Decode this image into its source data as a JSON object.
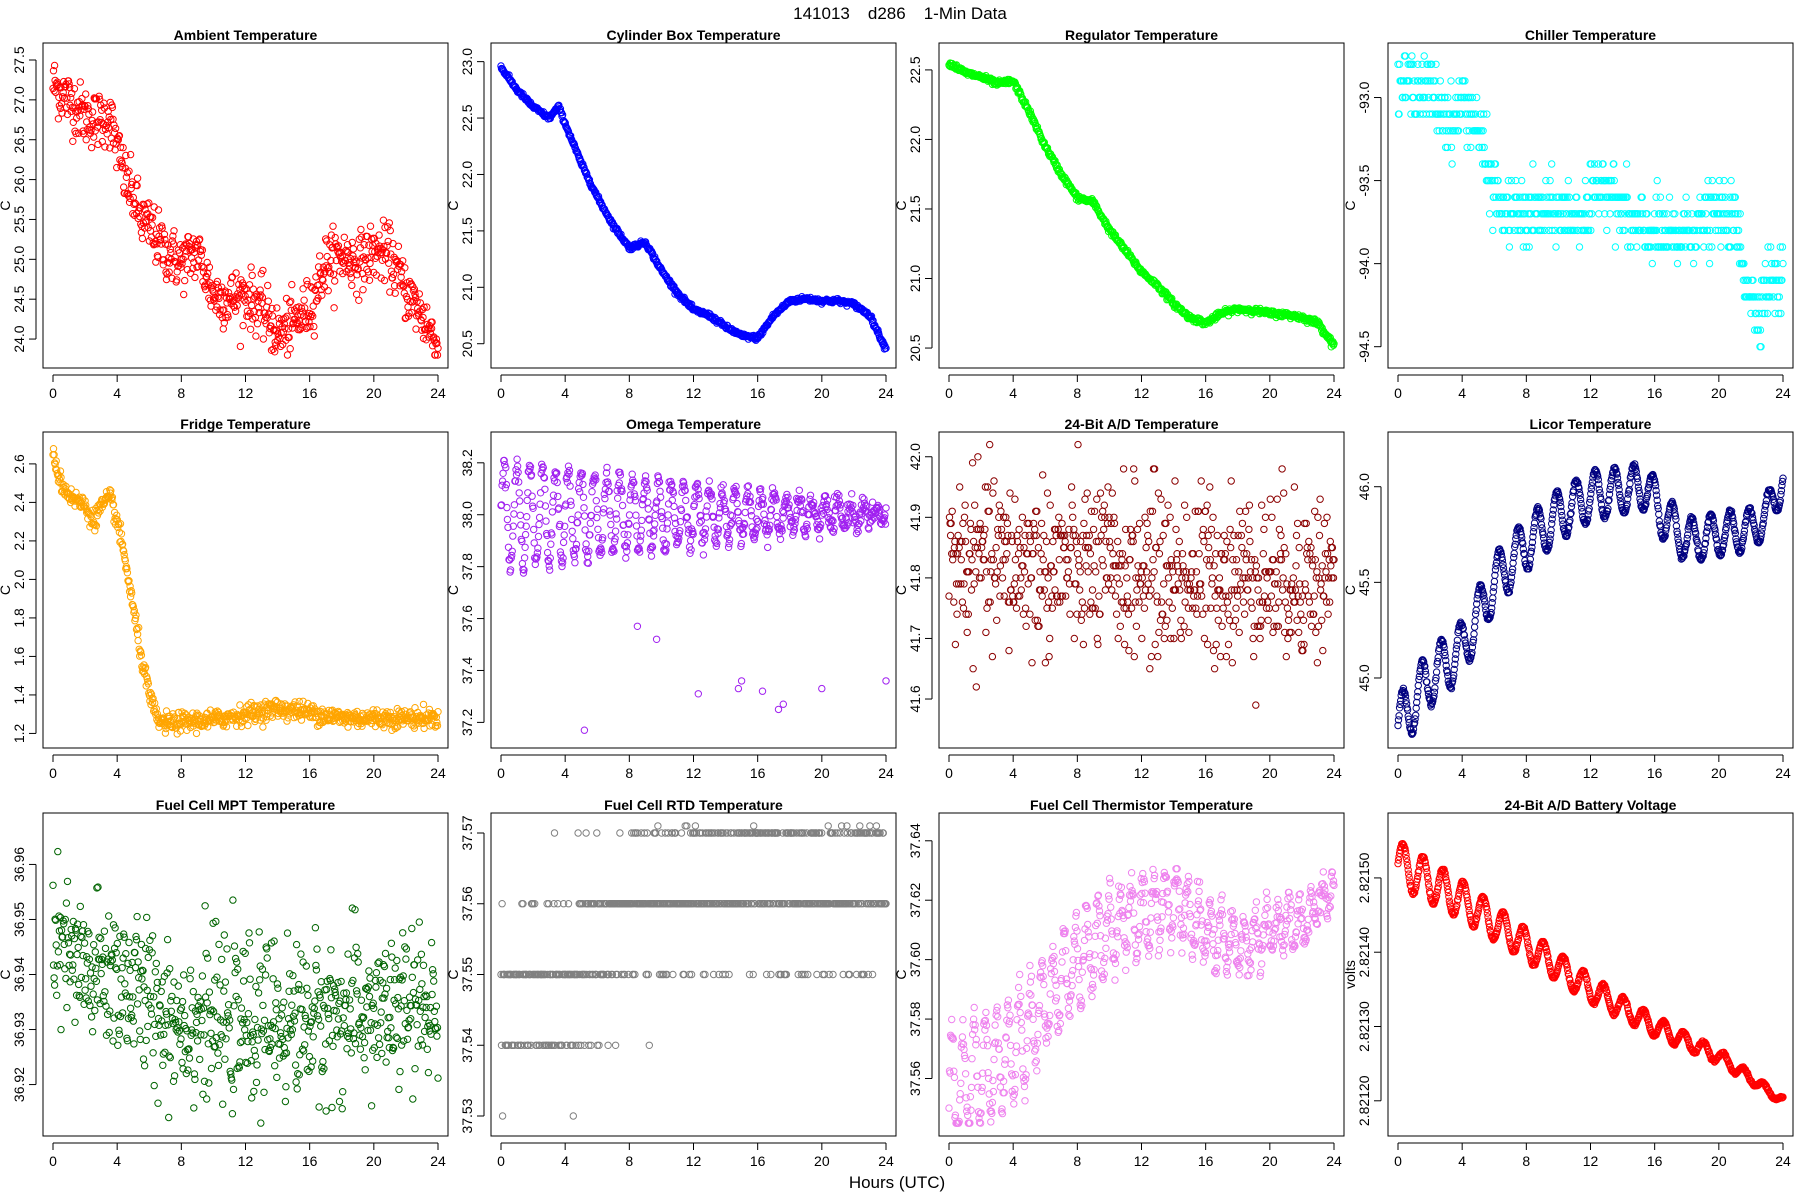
{
  "header": {
    "station": "141013",
    "site": "d286",
    "resolution": "1-Min Data"
  },
  "xlabel": "Hours (UTC)",
  "chart_data": [
    {
      "type": "scatter",
      "title": "Ambient Temperature",
      "ylabel": "C",
      "color": "#ff0000",
      "ylim": [
        23.8,
        27.55
      ],
      "yticks": [
        "24.0",
        "24.5",
        "25.0",
        "25.5",
        "26.0",
        "26.5",
        "27.0",
        "27.5"
      ],
      "xticks": [
        "0",
        "4",
        "8",
        "12",
        "16",
        "20",
        "24"
      ],
      "xlim": [
        0,
        24
      ],
      "anchors": [
        [
          0,
          27.2
        ],
        [
          0.5,
          27.1
        ],
        [
          1,
          27.0
        ],
        [
          1.5,
          26.9
        ],
        [
          2,
          26.8
        ],
        [
          2.5,
          26.75
        ],
        [
          3,
          26.75
        ],
        [
          3.5,
          26.8
        ],
        [
          4,
          26.4
        ],
        [
          4.5,
          26.0
        ],
        [
          5,
          25.8
        ],
        [
          5.5,
          25.5
        ],
        [
          6,
          25.4
        ],
        [
          7,
          25.1
        ],
        [
          8,
          24.95
        ],
        [
          9,
          25.1
        ],
        [
          10,
          24.55
        ],
        [
          11,
          24.5
        ],
        [
          12,
          24.55
        ],
        [
          13,
          24.4
        ],
        [
          14,
          24.05
        ],
        [
          15,
          24.2
        ],
        [
          16,
          24.4
        ],
        [
          17,
          24.95
        ],
        [
          18,
          25.05
        ],
        [
          19,
          24.95
        ],
        [
          20,
          25.1
        ],
        [
          21,
          25.05
        ],
        [
          22,
          24.6
        ],
        [
          23,
          24.3
        ],
        [
          24,
          23.9
        ]
      ],
      "noise": 0.18,
      "osc": 0,
      "period": 1.5
    },
    {
      "type": "scatter",
      "title": "Cylinder Box Temperature",
      "ylabel": "C",
      "color": "#0000ff",
      "ylim": [
        20.4,
        23.05
      ],
      "yticks": [
        "20.5",
        "21.0",
        "21.5",
        "22.0",
        "22.5",
        "23.0"
      ],
      "xticks": [
        "0",
        "4",
        "8",
        "12",
        "16",
        "20",
        "24"
      ],
      "xlim": [
        0,
        24
      ],
      "anchors": [
        [
          0,
          22.95
        ],
        [
          1,
          22.75
        ],
        [
          2,
          22.6
        ],
        [
          3,
          22.5
        ],
        [
          3.6,
          22.6
        ],
        [
          4,
          22.45
        ],
        [
          5,
          22.1
        ],
        [
          6,
          21.8
        ],
        [
          7,
          21.55
        ],
        [
          8,
          21.35
        ],
        [
          9,
          21.4
        ],
        [
          10,
          21.15
        ],
        [
          11,
          20.95
        ],
        [
          12,
          20.8
        ],
        [
          13,
          20.75
        ],
        [
          14,
          20.65
        ],
        [
          15,
          20.57
        ],
        [
          16,
          20.55
        ],
        [
          17,
          20.75
        ],
        [
          18,
          20.88
        ],
        [
          19,
          20.9
        ],
        [
          20,
          20.88
        ],
        [
          21,
          20.88
        ],
        [
          22,
          20.85
        ],
        [
          23,
          20.75
        ],
        [
          24,
          20.45
        ]
      ],
      "noise": 0.01,
      "osc": 0,
      "period": 1.5
    },
    {
      "type": "scatter",
      "title": "Regulator Temperature",
      "ylabel": "C",
      "color": "#00ff00",
      "ylim": [
        20.45,
        22.6
      ],
      "yticks": [
        "20.5",
        "21.0",
        "21.5",
        "22.0",
        "22.5"
      ],
      "xticks": [
        "0",
        "4",
        "8",
        "12",
        "16",
        "20",
        "24"
      ],
      "xlim": [
        0,
        24
      ],
      "anchors": [
        [
          0,
          22.55
        ],
        [
          1,
          22.48
        ],
        [
          2,
          22.45
        ],
        [
          3,
          22.4
        ],
        [
          4,
          22.42
        ],
        [
          5,
          22.2
        ],
        [
          6,
          21.95
        ],
        [
          7,
          21.75
        ],
        [
          8,
          21.58
        ],
        [
          9,
          21.55
        ],
        [
          10,
          21.35
        ],
        [
          11,
          21.2
        ],
        [
          12,
          21.05
        ],
        [
          13,
          20.95
        ],
        [
          14,
          20.82
        ],
        [
          15,
          20.72
        ],
        [
          16,
          20.68
        ],
        [
          17,
          20.75
        ],
        [
          18,
          20.78
        ],
        [
          19,
          20.77
        ],
        [
          20,
          20.75
        ],
        [
          21,
          20.74
        ],
        [
          22,
          20.72
        ],
        [
          23,
          20.68
        ],
        [
          24,
          20.52
        ]
      ],
      "noise": 0.01,
      "osc": 0,
      "period": 1.5
    },
    {
      "type": "scatter",
      "title": "Chiller Temperature",
      "ylabel": "C",
      "color": "#00ffff",
      "ylim": [
        -94.55,
        -92.75
      ],
      "yticks": [
        "-94.5",
        "-94.0",
        "-93.5",
        "-93.0"
      ],
      "xticks": [
        "0",
        "4",
        "8",
        "12",
        "16",
        "20",
        "24"
      ],
      "xlim": [
        0,
        24
      ],
      "anchors": [
        [
          0,
          -92.9
        ],
        [
          2,
          -92.95
        ],
        [
          2.5,
          -93.05
        ],
        [
          3.5,
          -93.15
        ],
        [
          4,
          -93.0
        ],
        [
          4.5,
          -93.1
        ],
        [
          5,
          -93.2
        ],
        [
          5.5,
          -93.4
        ],
        [
          6,
          -93.55
        ],
        [
          6.5,
          -93.7
        ],
        [
          12,
          -93.7
        ],
        [
          12.5,
          -93.5
        ],
        [
          13,
          -93.5
        ],
        [
          14,
          -93.7
        ],
        [
          15,
          -93.8
        ],
        [
          16,
          -93.8
        ],
        [
          17,
          -93.85
        ],
        [
          18,
          -93.8
        ],
        [
          20,
          -93.7
        ],
        [
          21,
          -93.75
        ],
        [
          21.5,
          -94.0
        ],
        [
          22,
          -94.2
        ],
        [
          22.5,
          -94.3
        ],
        [
          23,
          -94.1
        ],
        [
          24,
          -94.1
        ]
      ],
      "noise": 0.1,
      "osc": 0,
      "period": 1.5,
      "step": 0.1
    },
    {
      "type": "scatter",
      "title": "Fridge Temperature",
      "ylabel": "C",
      "color": "#ffa500",
      "ylim": [
        1.19,
        2.7
      ],
      "yticks": [
        "1.2",
        "1.4",
        "1.6",
        "1.8",
        "2.0",
        "2.2",
        "2.4",
        "2.6"
      ],
      "xticks": [
        "0",
        "4",
        "8",
        "12",
        "16",
        "20",
        "24"
      ],
      "xlim": [
        0,
        24
      ],
      "anchors": [
        [
          0,
          2.65
        ],
        [
          0.5,
          2.5
        ],
        [
          1,
          2.44
        ],
        [
          2,
          2.38
        ],
        [
          2.5,
          2.3
        ],
        [
          3,
          2.38
        ],
        [
          3.6,
          2.42
        ],
        [
          4,
          2.3
        ],
        [
          4.5,
          2.1
        ],
        [
          5,
          1.85
        ],
        [
          5.5,
          1.6
        ],
        [
          6,
          1.4
        ],
        [
          6.5,
          1.27
        ],
        [
          7,
          1.25
        ],
        [
          8,
          1.26
        ],
        [
          10,
          1.27
        ],
        [
          12,
          1.3
        ],
        [
          14,
          1.33
        ],
        [
          16,
          1.31
        ],
        [
          18,
          1.28
        ],
        [
          20,
          1.28
        ],
        [
          22,
          1.28
        ],
        [
          24,
          1.28
        ]
      ],
      "noise": 0.025,
      "osc": 0,
      "period": 1.5
    },
    {
      "type": "scatter",
      "title": "Omega Temperature",
      "ylabel": "C",
      "color": "#a020f0",
      "ylim": [
        37.15,
        38.27
      ],
      "yticks": [
        "37.2",
        "37.4",
        "37.6",
        "37.8",
        "38.0",
        "38.2"
      ],
      "xticks": [
        "0",
        "4",
        "8",
        "12",
        "16",
        "20",
        "24"
      ],
      "xlim": [
        0,
        24
      ],
      "anchors": [
        [
          0,
          38.0
        ],
        [
          12,
          38.0
        ],
        [
          18,
          38.0
        ],
        [
          24,
          38.0
        ]
      ],
      "noise": 0.02,
      "osc": 0.2,
      "period": 0.8,
      "osc_decay": 0.12,
      "outliers": [
        [
          5.2,
          37.17
        ],
        [
          8.5,
          37.57
        ],
        [
          9.7,
          37.52
        ],
        [
          12.3,
          37.31
        ],
        [
          14.8,
          37.33
        ],
        [
          15,
          37.36
        ],
        [
          16.3,
          37.32
        ],
        [
          17.3,
          37.25
        ],
        [
          17.6,
          37.27
        ],
        [
          20,
          37.33
        ],
        [
          24,
          37.36
        ]
      ]
    },
    {
      "type": "scatter",
      "title": "24-Bit A/D Temperature",
      "ylabel": "C",
      "color": "#8b0000",
      "ylim": [
        41.54,
        42.02
      ],
      "yticks": [
        "41.6",
        "41.7",
        "41.8",
        "41.9",
        "42.0"
      ],
      "xticks": [
        "0",
        "4",
        "8",
        "12",
        "16",
        "20",
        "24"
      ],
      "xlim": [
        0,
        24
      ],
      "anchors": [
        [
          0,
          41.83
        ],
        [
          12,
          41.81
        ],
        [
          24,
          41.8
        ]
      ],
      "noise": 0.07,
      "osc": 0,
      "period": 1.5,
      "step": 0.01
    },
    {
      "type": "scatter",
      "title": "Licor Temperature",
      "ylabel": "C",
      "color": "#000080",
      "ylim": [
        44.7,
        46.22
      ],
      "yticks": [
        "45.0",
        "45.5",
        "46.0"
      ],
      "xticks": [
        "0",
        "4",
        "8",
        "12",
        "16",
        "20",
        "24"
      ],
      "xlim": [
        0,
        24
      ],
      "anchors": [
        [
          0,
          44.75
        ],
        [
          2,
          45.0
        ],
        [
          4,
          45.15
        ],
        [
          6,
          45.5
        ],
        [
          8,
          45.7
        ],
        [
          10,
          45.85
        ],
        [
          12,
          45.95
        ],
        [
          14,
          45.98
        ],
        [
          15.5,
          46.0
        ],
        [
          16.5,
          45.85
        ],
        [
          18,
          45.72
        ],
        [
          20,
          45.75
        ],
        [
          22,
          45.78
        ],
        [
          23,
          45.85
        ],
        [
          24,
          46.05
        ]
      ],
      "noise": 0.005,
      "osc": 0.15,
      "period": 1.2,
      "osc_decay": 0.7
    },
    {
      "type": "scatter",
      "title": "Fuel Cell MPT Temperature",
      "ylabel": "C",
      "color": "#006400",
      "ylim": [
        36.913,
        36.967
      ],
      "yticks": [
        "36.92",
        "36.93",
        "36.94",
        "36.95",
        "36.96"
      ],
      "xticks": [
        "0",
        "4",
        "8",
        "12",
        "16",
        "20",
        "24"
      ],
      "xlim": [
        0,
        24
      ],
      "anchors": [
        [
          0,
          36.945
        ],
        [
          2,
          36.94
        ],
        [
          4,
          36.94
        ],
        [
          6,
          36.935
        ],
        [
          8,
          36.932
        ],
        [
          12,
          36.931
        ],
        [
          16,
          36.932
        ],
        [
          20,
          36.933
        ],
        [
          24,
          36.934
        ]
      ],
      "noise": 0.007,
      "osc": 0,
      "period": 1.5
    },
    {
      "type": "scatter",
      "title": "Fuel Cell RTD Temperature",
      "ylabel": "C",
      "color": "#808080",
      "ylim": [
        37.529,
        37.571
      ],
      "yticks": [
        "37.53",
        "37.54",
        "37.55",
        "37.56",
        "37.57"
      ],
      "xticks": [
        "0",
        "4",
        "8",
        "12",
        "16",
        "20",
        "24"
      ],
      "xlim": [
        0,
        24
      ],
      "anchors": [
        [
          0,
          37.545
        ],
        [
          3,
          37.548
        ],
        [
          5,
          37.552
        ],
        [
          7,
          37.558
        ],
        [
          12,
          37.562
        ],
        [
          18,
          37.563
        ],
        [
          24,
          37.562
        ]
      ],
      "noise": 0.006,
      "osc": 0,
      "period": 1.5,
      "step": 0.01
    },
    {
      "type": "scatter",
      "title": "Fuel Cell Thermistor Temperature",
      "ylabel": "C",
      "color": "#ee82ee",
      "ylim": [
        37.545,
        37.645
      ],
      "yticks": [
        "37.56",
        "37.58",
        "37.60",
        "37.62",
        "37.64"
      ],
      "xticks": [
        "0",
        "4",
        "8",
        "12",
        "16",
        "20",
        "24"
      ],
      "xlim": [
        0,
        24
      ],
      "anchors": [
        [
          0,
          37.555
        ],
        [
          4,
          37.57
        ],
        [
          6,
          37.585
        ],
        [
          8,
          37.6
        ],
        [
          10,
          37.61
        ],
        [
          12,
          37.615
        ],
        [
          14,
          37.62
        ],
        [
          16,
          37.61
        ],
        [
          18,
          37.605
        ],
        [
          20,
          37.61
        ],
        [
          22,
          37.612
        ],
        [
          24,
          37.625
        ]
      ],
      "noise": 0.003,
      "osc": 0.018,
      "period": 0.7,
      "osc_decay": 0.3
    },
    {
      "type": "scatter",
      "title": "24-Bit A/D Battery Voltage",
      "ylabel": "volts",
      "color": "#ff0000",
      "ylim": [
        2.82117,
        2.82157
      ],
      "yticks": [
        "2.82120",
        "2.82130",
        "2.82140",
        "2.82150"
      ],
      "xticks": [
        "0",
        "4",
        "8",
        "12",
        "16",
        "20",
        "24"
      ],
      "xlim": [
        0,
        24
      ],
      "anchors": [
        [
          0,
          2.82152
        ],
        [
          4,
          2.82147
        ],
        [
          8,
          2.82141
        ],
        [
          12,
          2.82135
        ],
        [
          16,
          2.8213
        ],
        [
          20,
          2.82126
        ],
        [
          24,
          2.8212
        ]
      ],
      "noise": 8e-07,
      "osc": 3e-05,
      "period": 1.25,
      "osc_decay": 0.15
    }
  ]
}
